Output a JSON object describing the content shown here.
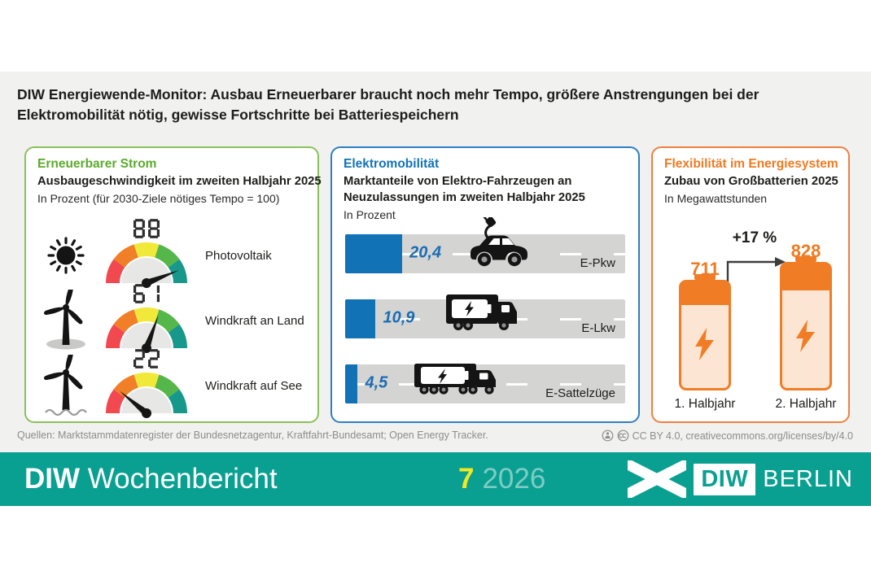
{
  "title": "DIW Energiewende-Monitor: Ausbau Erneuerbarer braucht noch mehr Tempo, größere Anstrengungen bei der Elektromobilität nötig, gewisse Fortschritte bei Batteriespeichern",
  "colors": {
    "green": "#5aab2b",
    "blue": "#1173b8",
    "orange": "#f07a21",
    "teal_footer": "#0aa091",
    "bar_blue": "#1272b6",
    "bar_gray": "#d4d4d3",
    "background": "#f1f1ef",
    "gauge_segments": [
      "#f2484f",
      "#f07f28",
      "#f0e93a",
      "#55b649",
      "#17988b"
    ],
    "issue_yellow": "#f3e821"
  },
  "panels": {
    "renewables": {
      "heading": "Erneuerbarer Strom",
      "subtitle": "Ausbaugeschwindigkeit im zweiten Halbjahr 2025",
      "unit": "In Prozent (für 2030-Ziele nötiges Tempo = 100)",
      "gauges": [
        {
          "icon": "sun-icon",
          "value": 88,
          "label": "Photovoltaik"
        },
        {
          "icon": "wind-turbine-onshore-icon",
          "value": 61,
          "label": "Windkraft an Land"
        },
        {
          "icon": "wind-turbine-offshore-icon",
          "value": 22,
          "label": "Windkraft auf See"
        }
      ]
    },
    "emobility": {
      "heading": "Elektromobilität",
      "subtitle": "Marktanteile von Elektro-Fahrzeugen an Neuzulassungen im zweiten Halbjahr 2025",
      "unit": "In Prozent",
      "bars": [
        {
          "icon": "e-car-icon",
          "value": 20.4,
          "value_label": "20,4",
          "label": "E-Pkw"
        },
        {
          "icon": "e-truck-icon",
          "value": 10.9,
          "value_label": "10,9",
          "label": "E-Lkw"
        },
        {
          "icon": "e-semitruck-icon",
          "value": 4.5,
          "value_label": "4,5",
          "label": "E-Sattelzüge"
        }
      ]
    },
    "flexibility": {
      "heading": "Flexibilität im Energiesystem",
      "subtitle": "Zubau von Großbatterien 2025",
      "unit": "In Megawattstunden",
      "batteries": [
        {
          "value": 711,
          "label": "1. Halbjahr"
        },
        {
          "value": 828,
          "label": "2. Halbjahr"
        }
      ],
      "change_label": "+17 %"
    }
  },
  "source": "Quellen: Marktstammdatenregister der Bundesnetzagentur, Kraftfahrt-Bundesamt; Open Energy Tracker.",
  "license": "CC BY 4.0, creativecommons.org/licenses/by/4.0",
  "footer": {
    "brand_bold": "DIW",
    "brand_rest": "Wochenbericht",
    "issue_number": "7",
    "issue_year": "2026",
    "logo_text": "DIW",
    "logo_city": "BERLIN"
  },
  "chart_data": [
    {
      "type": "gauge",
      "title": "Erneuerbarer Strom – Ausbaugeschwindigkeit im zweiten Halbjahr 2025",
      "unit": "Prozent (für 2030-Ziele nötiges Tempo = 100)",
      "categories": [
        "Photovoltaik",
        "Windkraft an Land",
        "Windkraft auf See"
      ],
      "values": [
        88,
        61,
        22
      ],
      "range": [
        0,
        100
      ]
    },
    {
      "type": "bar",
      "title": "Elektromobilität – Marktanteile von Elektro-Fahrzeugen an Neuzulassungen im zweiten Halbjahr 2025",
      "unit": "Prozent",
      "categories": [
        "E-Pkw",
        "E-Lkw",
        "E-Sattelzüge"
      ],
      "values": [
        20.4,
        10.9,
        4.5
      ],
      "xlim": [
        0,
        100
      ],
      "orientation": "horizontal"
    },
    {
      "type": "bar",
      "title": "Flexibilität im Energiesystem – Zubau von Großbatterien 2025",
      "unit": "Megawattstunden",
      "categories": [
        "1. Halbjahr",
        "2. Halbjahr"
      ],
      "values": [
        711,
        828
      ],
      "annotation": "+17 %"
    }
  ]
}
